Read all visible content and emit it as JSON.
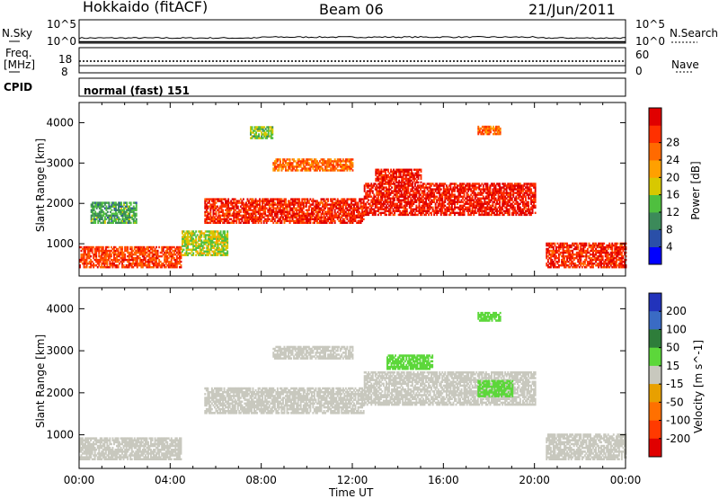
{
  "header": {
    "title": "Hokkaido (fitACF)",
    "beam": "Beam 06",
    "date": "21/Jun/2011"
  },
  "strips": {
    "nsky_label": "N.Sky",
    "nsky_ticks": [
      "10^5",
      "10^0"
    ],
    "nsearch_label": "N.Search",
    "nsearch_ticks": [
      "10^5",
      "10^0"
    ],
    "freq_label": "Freq.",
    "freq_unit": "[MHz]",
    "freq_ticks": [
      "18",
      "8"
    ],
    "nave_label": "Nave",
    "nave_ticks": [
      "60",
      "0"
    ],
    "cpid_label": "CPID",
    "cpid_value": "normal (fast) 151"
  },
  "colors": {
    "power_scale": [
      "#0000ff",
      "#2a4fa8",
      "#3c8a5a",
      "#4fbf3f",
      "#d8c800",
      "#ffa000",
      "#ff6a00",
      "#ff3000",
      "#e00000"
    ],
    "velocity_scale": [
      "#2233bb",
      "#3a6bc4",
      "#2e7d3a",
      "#5cd73a",
      "#c8c8be",
      "#e8a000",
      "#ff7000",
      "#ff3a00",
      "#e00000"
    ],
    "ground_scatter": "#c8c8be"
  },
  "chart_data": [
    {
      "type": "heatmap",
      "title": "Power",
      "ylabel": "Slant Range [km]",
      "xlabel": "Time UT",
      "x_ticks": [
        "00:00",
        "04:00",
        "08:00",
        "12:00",
        "16:00",
        "20:00",
        "00:00"
      ],
      "y_ticks": [
        "1000",
        "2000",
        "3000",
        "4000"
      ],
      "ylim": [
        200,
        4500
      ],
      "colorbar": {
        "label": "Power [dB]",
        "ticks": [
          "4",
          "8",
          "12",
          "16",
          "20",
          "24",
          "28"
        ],
        "range": [
          0,
          30
        ]
      },
      "regions": [
        {
          "t": [
            0,
            4.5
          ],
          "r": [
            400,
            900
          ],
          "value": 24
        },
        {
          "t": [
            4.5,
            6.5
          ],
          "r": [
            700,
            1300
          ],
          "value": 14
        },
        {
          "t": [
            5.5,
            12.5
          ],
          "r": [
            1500,
            2100
          ],
          "value": 26
        },
        {
          "t": [
            8.5,
            12
          ],
          "r": [
            2800,
            3100
          ],
          "value": 22
        },
        {
          "t": [
            13,
            15
          ],
          "r": [
            2500,
            2850
          ],
          "value": 27
        },
        {
          "t": [
            12.5,
            20
          ],
          "r": [
            1700,
            2500
          ],
          "value": 27
        },
        {
          "t": [
            20.5,
            24
          ],
          "r": [
            400,
            1000
          ],
          "value": 26
        },
        {
          "t": [
            0.5,
            2.5
          ],
          "r": [
            1500,
            2000
          ],
          "value": 10
        },
        {
          "t": [
            7.5,
            8.5
          ],
          "r": [
            3600,
            3900
          ],
          "value": 12
        },
        {
          "t": [
            17.5,
            18.5
          ],
          "r": [
            3700,
            3900
          ],
          "value": 22
        }
      ]
    },
    {
      "type": "heatmap",
      "title": "Velocity",
      "ylabel": "Slant Range [km]",
      "xlabel": "Time UT",
      "x_ticks": [
        "00:00",
        "04:00",
        "08:00",
        "12:00",
        "16:00",
        "20:00",
        "00:00"
      ],
      "y_ticks": [
        "1000",
        "2000",
        "3000",
        "4000"
      ],
      "ylim": [
        200,
        4500
      ],
      "colorbar": {
        "label": "Velocity [m s^-1]",
        "ticks": [
          "200",
          "100",
          "50",
          "15",
          "-15",
          "-50",
          "-100",
          "-200"
        ],
        "range": [
          -250,
          250
        ]
      },
      "regions": [
        {
          "t": [
            0,
            4.5
          ],
          "r": [
            400,
            900
          ],
          "value": 0
        },
        {
          "t": [
            5.5,
            12.5
          ],
          "r": [
            1500,
            2100
          ],
          "value": 0
        },
        {
          "t": [
            8.5,
            12
          ],
          "r": [
            2800,
            3100
          ],
          "value": 0
        },
        {
          "t": [
            13.5,
            15.5
          ],
          "r": [
            2550,
            2900
          ],
          "value": 40
        },
        {
          "t": [
            12.5,
            20
          ],
          "r": [
            1700,
            2500
          ],
          "value": 0
        },
        {
          "t": [
            17.5,
            19
          ],
          "r": [
            1900,
            2300
          ],
          "value": 40
        },
        {
          "t": [
            20.5,
            24
          ],
          "r": [
            400,
            1000
          ],
          "value": 0
        },
        {
          "t": [
            17.5,
            18.5
          ],
          "r": [
            3700,
            3900
          ],
          "value": 40
        }
      ]
    }
  ]
}
